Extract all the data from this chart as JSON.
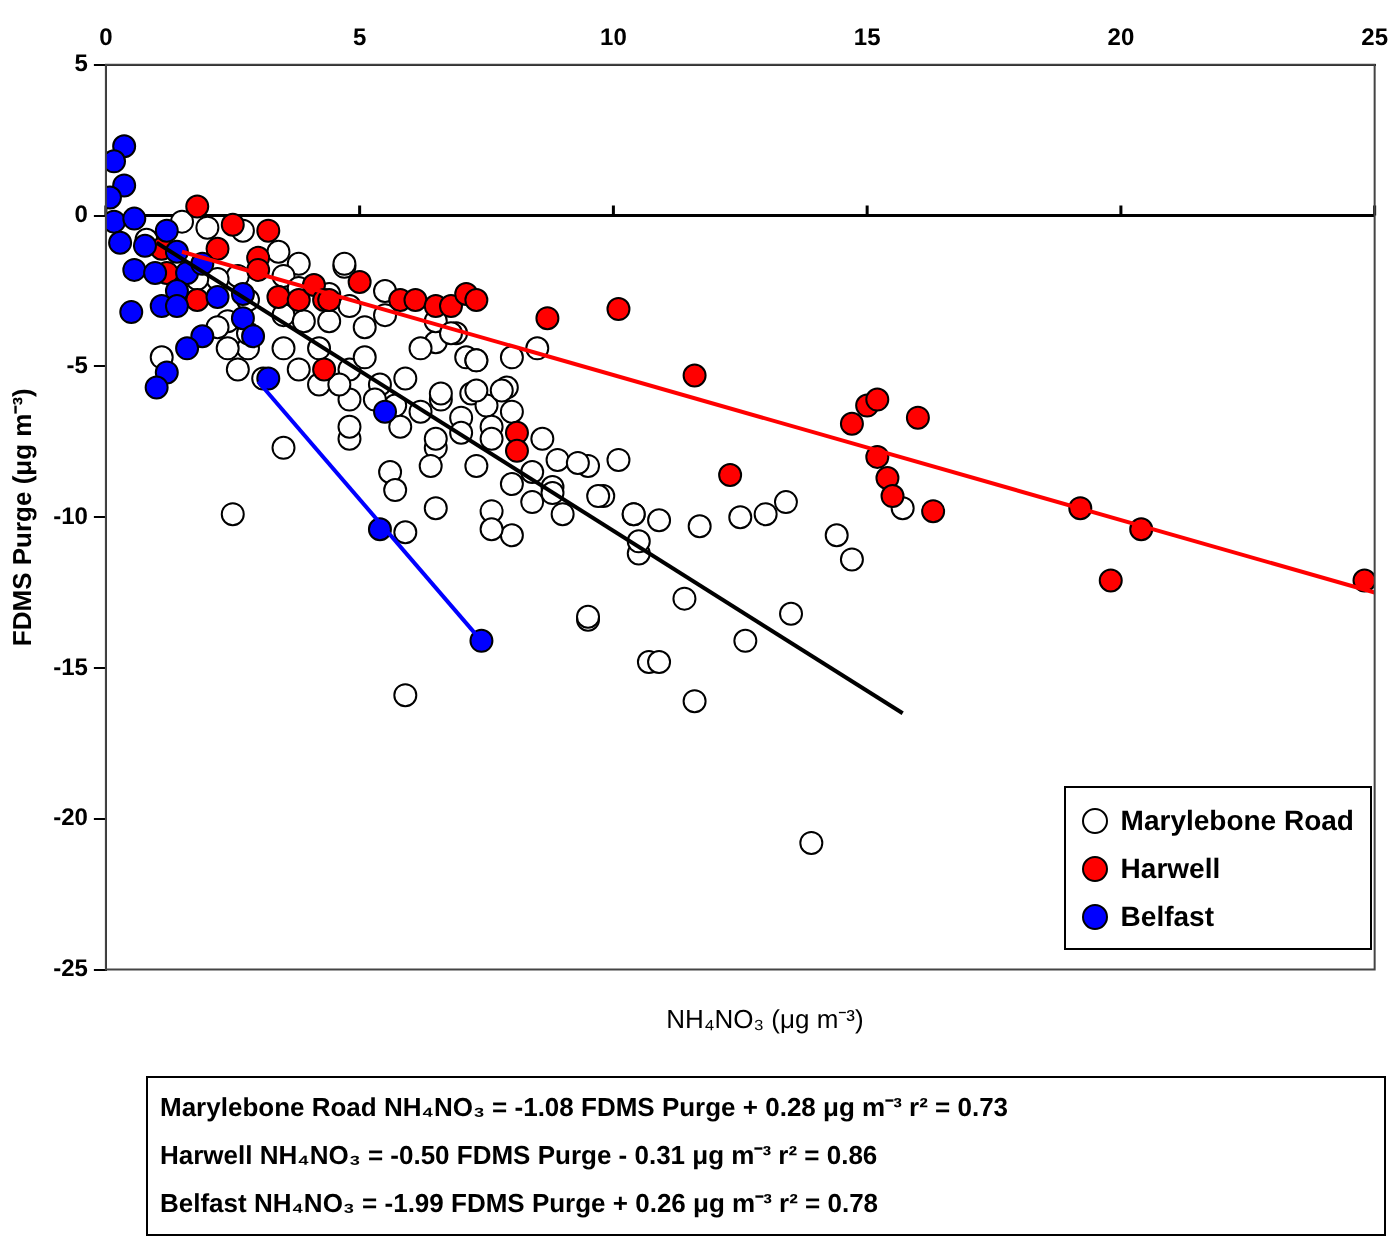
{
  "chart_data": {
    "type": "scatter",
    "xlabel": "NH₄NO₃ (μg m⁻³)",
    "ylabel": "FDMS Purge (μg m⁻³)",
    "xlim": [
      0,
      25
    ],
    "xticks": [
      0,
      5,
      10,
      15,
      20,
      25
    ],
    "ylim": [
      -25,
      5
    ],
    "yticks": [
      5,
      0,
      -5,
      -10,
      -15,
      -20,
      -25
    ],
    "grid": false,
    "legend": "bottom right",
    "marker": "circle",
    "ref_lines": [
      {
        "axis": "y",
        "value": 0,
        "color": "#000000"
      }
    ],
    "series": [
      {
        "name": "Marylebone Road",
        "color": "#ffffff",
        "x": [
          1.1,
          3.5,
          2.5,
          5.9,
          9.5,
          10.7,
          5.9,
          6.5,
          5.6,
          5.7,
          4.8,
          7.6,
          8.0,
          7.6,
          10.5,
          10.4,
          10.1,
          9.5,
          8.8,
          8.4,
          6.5,
          7.3,
          6.4,
          4.7,
          6.5,
          6.9,
          7.1,
          7.3,
          8.5,
          7.9,
          7.2,
          6.6,
          7.5,
          8.6,
          8.9,
          9.3,
          8.8,
          9.8,
          9.0,
          10.4,
          10.9,
          11.7,
          12.5,
          13.0,
          13.4,
          10.5,
          11.4,
          9.5,
          13.5,
          10.9,
          12.6,
          14.4,
          14.7,
          15.7,
          13.9,
          11.6,
          1.5,
          2.0,
          2.7,
          3.4,
          3.8,
          4.7,
          3.5,
          2.6,
          2.2,
          1.8,
          2.8,
          3.5,
          3.9,
          4.4,
          4.8,
          5.1,
          5.5,
          6.2,
          6.5,
          6.8,
          7.3,
          8.0,
          7.8,
          7.3,
          6.6,
          5.9,
          5.4,
          4.8,
          5.1,
          4.2,
          3.5,
          2.8,
          2.4,
          2.6,
          3.1,
          3.8,
          4.2,
          4.8,
          5.7,
          6.2,
          7.0,
          7.6,
          8.0,
          6.5,
          5.8,
          4.8,
          3.8,
          4.4,
          5.5,
          2.4,
          2.8,
          2.2,
          9.7,
          8.4,
          8.0,
          7.6,
          7.0,
          5.3,
          4.6,
          0.8
        ],
        "values": [
          -4.7,
          -7.7,
          -9.9,
          -15.9,
          -13.4,
          -14.8,
          -10.5,
          -9.7,
          -8.5,
          -9.1,
          -7.4,
          -9.8,
          -10.6,
          -10.4,
          -11.2,
          -9.9,
          -8.1,
          -8.3,
          -9.0,
          -9.5,
          -7.7,
          -8.3,
          -8.3,
          -1.7,
          -4.2,
          -3.9,
          -4.7,
          -4.8,
          -4.4,
          -5.7,
          -5.9,
          -6.1,
          -6.3,
          -7.4,
          -8.1,
          -8.2,
          -9.2,
          -9.3,
          -9.9,
          -9.9,
          -10.1,
          -10.3,
          -10.0,
          -9.9,
          -9.5,
          -10.8,
          -12.7,
          -13.3,
          -13.2,
          -14.8,
          -14.1,
          -10.6,
          -11.4,
          -9.7,
          -20.8,
          -16.1,
          -0.2,
          -0.4,
          -0.5,
          -1.2,
          -1.6,
          -1.6,
          -2.0,
          -2.0,
          -2.1,
          -2.1,
          -2.8,
          -3.3,
          -3.5,
          -3.5,
          -3.0,
          -3.7,
          -3.3,
          -4.4,
          -3.5,
          -3.9,
          -4.8,
          -4.7,
          -5.8,
          -5.8,
          -5.9,
          -5.4,
          -5.6,
          -5.1,
          -4.7,
          -4.4,
          -4.4,
          -4.4,
          -4.4,
          -5.1,
          -5.4,
          -5.1,
          -5.6,
          -6.1,
          -6.3,
          -6.5,
          -6.7,
          -7.0,
          -6.5,
          -7.4,
          -7.0,
          -7.0,
          -2.4,
          -2.6,
          -2.5,
          -3.5,
          -3.9,
          -3.7,
          -9.3,
          -8.5,
          -8.9,
          -7.4,
          -7.2,
          -6.1,
          -5.6,
          -0.8
        ]
      },
      {
        "name": "Harwell",
        "color": "#ff0000",
        "x": [
          1.8,
          2.5,
          3.2,
          1.1,
          2.2,
          3.0,
          3.0,
          1.2,
          1.8,
          3.4,
          3.8,
          4.1,
          4.3,
          5.0,
          4.3,
          5.8,
          4.4,
          6.1,
          6.5,
          6.8,
          7.1,
          7.3,
          8.7,
          10.1,
          11.6,
          8.1,
          8.1,
          12.3,
          14.7,
          15.0,
          15.2,
          16.0,
          15.2,
          15.4,
          15.5,
          16.3,
          19.2,
          20.4,
          19.8,
          24.8
        ],
        "values": [
          0.3,
          -0.3,
          -0.5,
          -1.1,
          -1.1,
          -1.4,
          -1.8,
          -1.9,
          -2.8,
          -2.7,
          -2.8,
          -2.3,
          -2.8,
          -2.2,
          -5.1,
          -2.8,
          -2.8,
          -2.8,
          -3.0,
          -3.0,
          -2.6,
          -2.8,
          -3.4,
          -3.1,
          -5.3,
          -7.2,
          -7.8,
          -8.6,
          -6.9,
          -6.3,
          -6.1,
          -6.7,
          -8.0,
          -8.7,
          -9.3,
          -9.8,
          -9.7,
          -10.4,
          -12.1,
          -12.1
        ]
      },
      {
        "name": "Belfast",
        "color": "#0000ff",
        "x": [
          0.36,
          0.16,
          0.36,
          0.08,
          0.16,
          0.56,
          0.28,
          0.77,
          0.56,
          0.97,
          1.2,
          1.4,
          1.6,
          1.9,
          1.4,
          1.1,
          1.4,
          2.2,
          2.7,
          2.7,
          2.9,
          1.9,
          1.6,
          0.5,
          1.2,
          1.0,
          3.2,
          5.5,
          5.4,
          7.4
        ],
        "values": [
          2.3,
          1.8,
          1.0,
          0.6,
          -0.2,
          -0.1,
          -0.9,
          -1.0,
          -1.8,
          -1.9,
          -0.5,
          -1.2,
          -1.9,
          -1.6,
          -2.5,
          -3.0,
          -3.0,
          -2.7,
          -2.6,
          -3.4,
          -4.0,
          -4.0,
          -4.4,
          -3.2,
          -5.2,
          -5.7,
          -5.4,
          -6.5,
          -10.4,
          -14.1
        ]
      },
      {
        "type": "line",
        "marker": "none",
        "color": "#000000",
        "x": [
          1,
          15.7
        ],
        "values": [
          -0.9,
          -16.5
        ]
      },
      {
        "type": "line",
        "marker": "none",
        "color": "#ff0000",
        "x": [
          1.5,
          25
        ],
        "values": [
          -1.2,
          -12.5
        ]
      },
      {
        "type": "line",
        "marker": "none",
        "color": "#0000ff",
        "x": [
          3.0,
          7.4
        ],
        "values": [
          -5.5,
          -14.1
        ]
      }
    ],
    "annotations": [
      "Marylebone Road NH₄NO₃ = -1.08 FDMS Purge  + 0.28 μg m⁻³   r² = 0.73",
      "Harwell NH₄NO₃ = -0.50 FDMS Purge - 0.31 μg m⁻³   r² = 0.86",
      "Belfast NH₄NO₃ = -1.99 FDMS Purge + 0.26 μg m⁻³   r² = 0.78"
    ]
  }
}
